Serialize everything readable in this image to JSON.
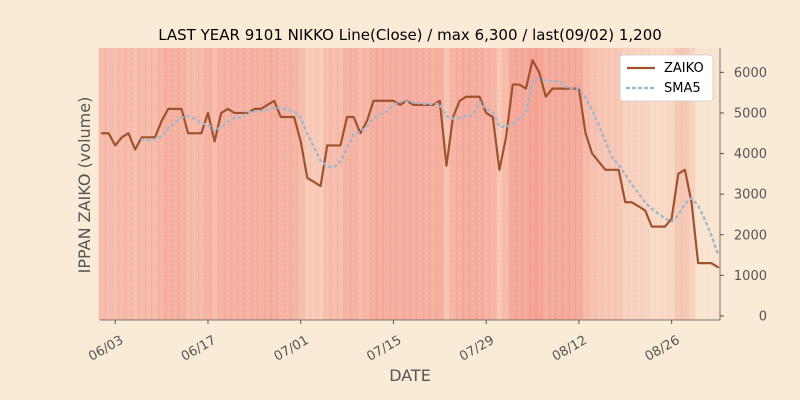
{
  "chart_data": {
    "type": "line",
    "title": "LAST YEAR 9101 NIKKO Line(Close) / max 6,300 / last(09/02) 1,200",
    "xlabel": "DATE",
    "ylabel": "IPPAN ZAIKO (volume)",
    "ylim": [
      -100,
      6600
    ],
    "yticks": [
      0,
      1000,
      2000,
      3000,
      4000,
      5000,
      6000
    ],
    "x_date_range": [
      "2024-06-01",
      "2024-09-02"
    ],
    "xticks": [
      {
        "date": "2024-06-03",
        "label": "06/03"
      },
      {
        "date": "2024-06-17",
        "label": "06/17"
      },
      {
        "date": "2024-07-01",
        "label": "07/01"
      },
      {
        "date": "2024-07-15",
        "label": "07/15"
      },
      {
        "date": "2024-07-29",
        "label": "07/29"
      },
      {
        "date": "2024-08-12",
        "label": "08/12"
      },
      {
        "date": "2024-08-26",
        "label": "08/26"
      }
    ],
    "legend_position": "top-right",
    "background_bands": "daily vertical shading, deeper red where volume is higher",
    "series": [
      {
        "name": "ZAIKO",
        "color": "#a0522d",
        "style": "solid",
        "points": [
          [
            "2024-06-01",
            4500
          ],
          [
            "2024-06-02",
            4500
          ],
          [
            "2024-06-03",
            4200
          ],
          [
            "2024-06-04",
            4400
          ],
          [
            "2024-06-05",
            4500
          ],
          [
            "2024-06-06",
            4100
          ],
          [
            "2024-06-07",
            4400
          ],
          [
            "2024-06-08",
            4400
          ],
          [
            "2024-06-09",
            4400
          ],
          [
            "2024-06-10",
            4800
          ],
          [
            "2024-06-11",
            5100
          ],
          [
            "2024-06-12",
            5100
          ],
          [
            "2024-06-13",
            5100
          ],
          [
            "2024-06-14",
            4500
          ],
          [
            "2024-06-15",
            4500
          ],
          [
            "2024-06-16",
            4500
          ],
          [
            "2024-06-17",
            5000
          ],
          [
            "2024-06-18",
            4300
          ],
          [
            "2024-06-19",
            5000
          ],
          [
            "2024-06-20",
            5100
          ],
          [
            "2024-06-21",
            5000
          ],
          [
            "2024-06-22",
            5000
          ],
          [
            "2024-06-23",
            5000
          ],
          [
            "2024-06-24",
            5100
          ],
          [
            "2024-06-25",
            5100
          ],
          [
            "2024-06-26",
            5200
          ],
          [
            "2024-06-27",
            5300
          ],
          [
            "2024-06-28",
            4900
          ],
          [
            "2024-06-29",
            4900
          ],
          [
            "2024-06-30",
            4900
          ],
          [
            "2024-07-01",
            4300
          ],
          [
            "2024-07-02",
            3400
          ],
          [
            "2024-07-03",
            3300
          ],
          [
            "2024-07-04",
            3200
          ],
          [
            "2024-07-05",
            4200
          ],
          [
            "2024-07-06",
            4200
          ],
          [
            "2024-07-07",
            4200
          ],
          [
            "2024-07-08",
            4900
          ],
          [
            "2024-07-09",
            4900
          ],
          [
            "2024-07-10",
            4500
          ],
          [
            "2024-07-11",
            4800
          ],
          [
            "2024-07-12",
            5300
          ],
          [
            "2024-07-13",
            5300
          ],
          [
            "2024-07-14",
            5300
          ],
          [
            "2024-07-15",
            5300
          ],
          [
            "2024-07-16",
            5200
          ],
          [
            "2024-07-17",
            5300
          ],
          [
            "2024-07-18",
            5200
          ],
          [
            "2024-07-19",
            5200
          ],
          [
            "2024-07-20",
            5200
          ],
          [
            "2024-07-21",
            5200
          ],
          [
            "2024-07-22",
            5300
          ],
          [
            "2024-07-23",
            3700
          ],
          [
            "2024-07-24",
            4900
          ],
          [
            "2024-07-25",
            5300
          ],
          [
            "2024-07-26",
            5400
          ],
          [
            "2024-07-27",
            5400
          ],
          [
            "2024-07-28",
            5400
          ],
          [
            "2024-07-29",
            5000
          ],
          [
            "2024-07-30",
            4900
          ],
          [
            "2024-07-31",
            3600
          ],
          [
            "2024-08-01",
            4400
          ],
          [
            "2024-08-02",
            5700
          ],
          [
            "2024-08-03",
            5700
          ],
          [
            "2024-08-04",
            5600
          ],
          [
            "2024-08-05",
            6300
          ],
          [
            "2024-08-06",
            6000
          ],
          [
            "2024-08-07",
            5400
          ],
          [
            "2024-08-08",
            5600
          ],
          [
            "2024-08-09",
            5600
          ],
          [
            "2024-08-10",
            5600
          ],
          [
            "2024-08-11",
            5600
          ],
          [
            "2024-08-12",
            5600
          ],
          [
            "2024-08-13",
            4500
          ],
          [
            "2024-08-14",
            4000
          ],
          [
            "2024-08-15",
            3800
          ],
          [
            "2024-08-16",
            3600
          ],
          [
            "2024-08-17",
            3600
          ],
          [
            "2024-08-18",
            3600
          ],
          [
            "2024-08-19",
            2800
          ],
          [
            "2024-08-20",
            2800
          ],
          [
            "2024-08-21",
            2700
          ],
          [
            "2024-08-22",
            2600
          ],
          [
            "2024-08-23",
            2200
          ],
          [
            "2024-08-24",
            2200
          ],
          [
            "2024-08-25",
            2200
          ],
          [
            "2024-08-26",
            2400
          ],
          [
            "2024-08-27",
            3500
          ],
          [
            "2024-08-28",
            3600
          ],
          [
            "2024-08-29",
            2800
          ],
          [
            "2024-08-30",
            1300
          ],
          [
            "2024-08-31",
            1300
          ],
          [
            "2024-09-01",
            1300
          ],
          [
            "2024-09-02",
            1200
          ]
        ]
      },
      {
        "name": "SMA5",
        "color": "#9fb7cf",
        "style": "dotted",
        "points": [
          [
            "2024-06-07",
            4340
          ],
          [
            "2024-06-08",
            4320
          ],
          [
            "2024-06-09",
            4360
          ],
          [
            "2024-06-10",
            4420
          ],
          [
            "2024-06-11",
            4620
          ],
          [
            "2024-06-12",
            4760
          ],
          [
            "2024-06-13",
            4880
          ],
          [
            "2024-06-14",
            4920
          ],
          [
            "2024-06-15",
            4860
          ],
          [
            "2024-06-16",
            4740
          ],
          [
            "2024-06-17",
            4720
          ],
          [
            "2024-06-18",
            4560
          ],
          [
            "2024-06-19",
            4660
          ],
          [
            "2024-06-20",
            4780
          ],
          [
            "2024-06-21",
            4880
          ],
          [
            "2024-06-22",
            4880
          ],
          [
            "2024-06-23",
            5020
          ],
          [
            "2024-06-24",
            5040
          ],
          [
            "2024-06-25",
            5040
          ],
          [
            "2024-06-26",
            5080
          ],
          [
            "2024-06-27",
            5140
          ],
          [
            "2024-06-28",
            5120
          ],
          [
            "2024-06-29",
            5080
          ],
          [
            "2024-06-30",
            5040
          ],
          [
            "2024-07-01",
            4880
          ],
          [
            "2024-07-02",
            4480
          ],
          [
            "2024-07-03",
            4160
          ],
          [
            "2024-07-04",
            3820
          ],
          [
            "2024-07-05",
            3680
          ],
          [
            "2024-07-06",
            3660
          ],
          [
            "2024-07-07",
            3800
          ],
          [
            "2024-07-08",
            4140
          ],
          [
            "2024-07-09",
            4480
          ],
          [
            "2024-07-10",
            4540
          ],
          [
            "2024-07-11",
            4660
          ],
          [
            "2024-07-12",
            4880
          ],
          [
            "2024-07-13",
            4960
          ],
          [
            "2024-07-14",
            5040
          ],
          [
            "2024-07-15",
            5200
          ],
          [
            "2024-07-16",
            5280
          ],
          [
            "2024-07-17",
            5280
          ],
          [
            "2024-07-18",
            5260
          ],
          [
            "2024-07-19",
            5240
          ],
          [
            "2024-07-20",
            5220
          ],
          [
            "2024-07-21",
            5220
          ],
          [
            "2024-07-22",
            5220
          ],
          [
            "2024-07-23",
            4920
          ],
          [
            "2024-07-24",
            4860
          ],
          [
            "2024-07-25",
            4880
          ],
          [
            "2024-07-26",
            4920
          ],
          [
            "2024-07-27",
            4940
          ],
          [
            "2024-07-28",
            5280
          ],
          [
            "2024-07-29",
            5100
          ],
          [
            "2024-07-30",
            5020
          ],
          [
            "2024-07-31",
            4660
          ],
          [
            "2024-08-01",
            4660
          ],
          [
            "2024-08-02",
            4720
          ],
          [
            "2024-08-03",
            4860
          ],
          [
            "2024-08-04",
            5000
          ],
          [
            "2024-08-05",
            5740
          ],
          [
            "2024-08-06",
            5860
          ],
          [
            "2024-08-07",
            5800
          ],
          [
            "2024-08-08",
            5780
          ],
          [
            "2024-08-09",
            5780
          ],
          [
            "2024-08-10",
            5640
          ],
          [
            "2024-08-11",
            5600
          ],
          [
            "2024-08-12",
            5600
          ],
          [
            "2024-08-13",
            5380
          ],
          [
            "2024-08-14",
            5060
          ],
          [
            "2024-08-15",
            4700
          ],
          [
            "2024-08-16",
            4300
          ],
          [
            "2024-08-17",
            3900
          ],
          [
            "2024-08-18",
            3720
          ],
          [
            "2024-08-19",
            3480
          ],
          [
            "2024-08-20",
            3240
          ],
          [
            "2024-08-21",
            3020
          ],
          [
            "2024-08-22",
            2800
          ],
          [
            "2024-08-23",
            2640
          ],
          [
            "2024-08-24",
            2520
          ],
          [
            "2024-08-25",
            2400
          ],
          [
            "2024-08-26",
            2320
          ],
          [
            "2024-08-27",
            2480
          ],
          [
            "2024-08-28",
            2760
          ],
          [
            "2024-08-29",
            2900
          ],
          [
            "2024-08-30",
            2720
          ],
          [
            "2024-08-31",
            2380
          ],
          [
            "2024-09-01",
            1980
          ],
          [
            "2024-09-02",
            1520
          ]
        ]
      }
    ]
  }
}
